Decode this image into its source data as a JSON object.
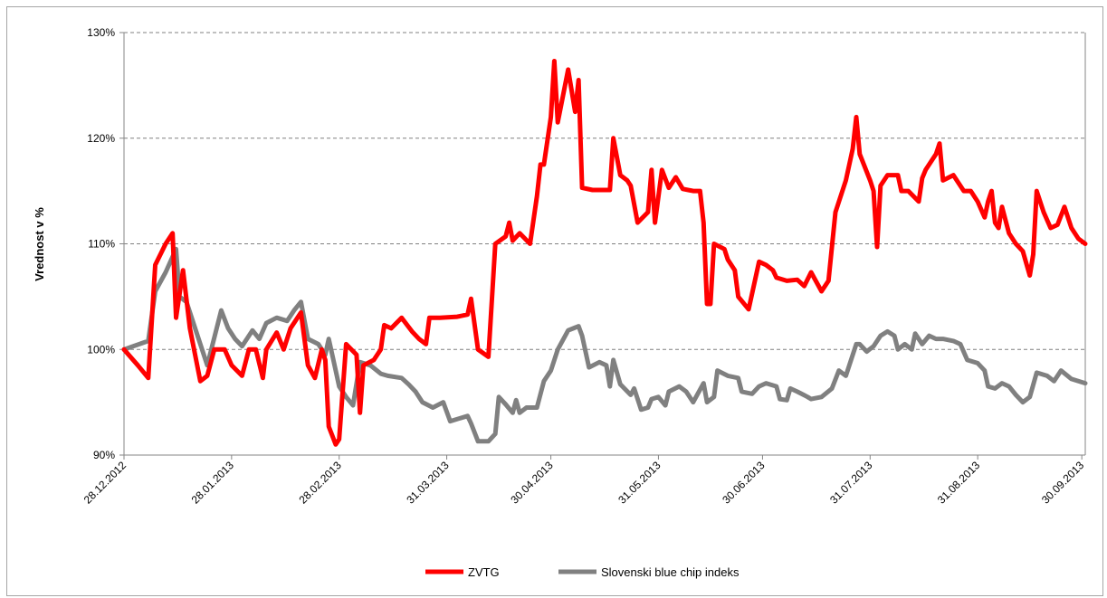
{
  "chart_data": {
    "type": "line",
    "title": "",
    "xlabel": "",
    "ylabel": "Vrednost v %",
    "ylim": [
      90,
      130
    ],
    "yticks": [
      "90%",
      "100%",
      "110%",
      "120%",
      "130%"
    ],
    "ytick_values": [
      90,
      100,
      110,
      120,
      130
    ],
    "xlim": [
      "2012-12-28",
      "2013-10-01"
    ],
    "xtick_labels": [
      "28.12.2012",
      "28.01.2013",
      "28.02.2013",
      "31.03.2013",
      "30.04.2013",
      "31.05.2013",
      "30.06.2013",
      "31.07.2013",
      "31.08.2013",
      "30.09.2013"
    ],
    "xtick_dates": [
      "2012-12-28",
      "2013-01-28",
      "2013-02-28",
      "2013-03-31",
      "2013-04-30",
      "2013-05-31",
      "2013-06-30",
      "2013-07-31",
      "2013-08-31",
      "2013-09-30"
    ],
    "grid": "horizontal-dashed",
    "legend_position": "bottom-center",
    "series": [
      {
        "name": "ZVTG",
        "color": "#ff0000",
        "points": [
          [
            "2012-12-28",
            100.0
          ],
          [
            "2013-01-01",
            98.5
          ],
          [
            "2013-01-04",
            97.3
          ],
          [
            "2013-01-06",
            108.0
          ],
          [
            "2013-01-09",
            110.0
          ],
          [
            "2013-01-11",
            111.0
          ],
          [
            "2013-01-12",
            103.0
          ],
          [
            "2013-01-14",
            107.5
          ],
          [
            "2013-01-16",
            102.0
          ],
          [
            "2013-01-19",
            97.0
          ],
          [
            "2013-01-21",
            97.5
          ],
          [
            "2013-01-23",
            100.0
          ],
          [
            "2013-01-26",
            100.0
          ],
          [
            "2013-01-28",
            98.5
          ],
          [
            "2013-01-31",
            97.5
          ],
          [
            "2013-02-02",
            100.0
          ],
          [
            "2013-02-04",
            100.0
          ],
          [
            "2013-02-06",
            97.3
          ],
          [
            "2013-02-07",
            100.0
          ],
          [
            "2013-02-10",
            101.6
          ],
          [
            "2013-02-12",
            100.0
          ],
          [
            "2013-02-14",
            102.0
          ],
          [
            "2013-02-17",
            103.5
          ],
          [
            "2013-02-19",
            98.5
          ],
          [
            "2013-02-21",
            97.3
          ],
          [
            "2013-02-23",
            100.0
          ],
          [
            "2013-02-24",
            99.0
          ],
          [
            "2013-02-25",
            92.7
          ],
          [
            "2013-02-27",
            91.0
          ],
          [
            "2013-02-28",
            91.5
          ],
          [
            "2013-03-02",
            100.5
          ],
          [
            "2013-03-05",
            99.5
          ],
          [
            "2013-03-06",
            94.0
          ],
          [
            "2013-03-07",
            98.5
          ],
          [
            "2013-03-10",
            99.0
          ],
          [
            "2013-03-12",
            100.0
          ],
          [
            "2013-03-13",
            102.3
          ],
          [
            "2013-03-15",
            102.0
          ],
          [
            "2013-03-18",
            103.0
          ],
          [
            "2013-03-21",
            101.7
          ],
          [
            "2013-03-23",
            101.0
          ],
          [
            "2013-03-25",
            100.5
          ],
          [
            "2013-03-26",
            103.0
          ],
          [
            "2013-03-29",
            103.0
          ],
          [
            "2013-04-03",
            103.1
          ],
          [
            "2013-04-06",
            103.3
          ],
          [
            "2013-04-07",
            104.8
          ],
          [
            "2013-04-09",
            100.0
          ],
          [
            "2013-04-12",
            99.3
          ],
          [
            "2013-04-14",
            110.0
          ],
          [
            "2013-04-17",
            110.7
          ],
          [
            "2013-04-18",
            112.0
          ],
          [
            "2013-04-19",
            110.3
          ],
          [
            "2013-04-21",
            111.0
          ],
          [
            "2013-04-24",
            110.0
          ],
          [
            "2013-04-26",
            114.5
          ],
          [
            "2013-04-27",
            117.5
          ],
          [
            "2013-04-28",
            117.5
          ],
          [
            "2013-04-30",
            122.0
          ],
          [
            "2013-05-01",
            127.3
          ],
          [
            "2013-05-02",
            121.5
          ],
          [
            "2013-05-05",
            126.5
          ],
          [
            "2013-05-07",
            122.5
          ],
          [
            "2013-05-08",
            125.5
          ],
          [
            "2013-05-09",
            115.3
          ],
          [
            "2013-05-12",
            115.1
          ],
          [
            "2013-05-15",
            115.1
          ],
          [
            "2013-05-17",
            115.1
          ],
          [
            "2013-05-18",
            120.0
          ],
          [
            "2013-05-20",
            116.5
          ],
          [
            "2013-05-22",
            116.0
          ],
          [
            "2013-05-23",
            115.5
          ],
          [
            "2013-05-25",
            112.0
          ],
          [
            "2013-05-28",
            113.0
          ],
          [
            "2013-05-29",
            117.0
          ],
          [
            "2013-05-30",
            112.0
          ],
          [
            "2013-06-01",
            117.0
          ],
          [
            "2013-06-03",
            115.3
          ],
          [
            "2013-06-05",
            116.3
          ],
          [
            "2013-06-07",
            115.2
          ],
          [
            "2013-06-10",
            115.0
          ],
          [
            "2013-06-12",
            115.0
          ],
          [
            "2013-06-13",
            112.0
          ],
          [
            "2013-06-14",
            104.3
          ],
          [
            "2013-06-15",
            104.3
          ],
          [
            "2013-06-16",
            110.0
          ],
          [
            "2013-06-19",
            109.5
          ],
          [
            "2013-06-20",
            108.5
          ],
          [
            "2013-06-22",
            107.5
          ],
          [
            "2013-06-23",
            105.0
          ],
          [
            "2013-06-26",
            103.8
          ],
          [
            "2013-06-29",
            108.3
          ],
          [
            "2013-07-01",
            108.0
          ],
          [
            "2013-07-03",
            107.5
          ],
          [
            "2013-07-04",
            106.8
          ],
          [
            "2013-07-07",
            106.5
          ],
          [
            "2013-07-10",
            106.6
          ],
          [
            "2013-07-12",
            106.0
          ],
          [
            "2013-07-14",
            107.3
          ],
          [
            "2013-07-17",
            105.5
          ],
          [
            "2013-07-19",
            106.5
          ],
          [
            "2013-07-21",
            113.0
          ],
          [
            "2013-07-24",
            116.0
          ],
          [
            "2013-07-26",
            119.0
          ],
          [
            "2013-07-27",
            122.0
          ],
          [
            "2013-07-28",
            118.5
          ],
          [
            "2013-07-31",
            116.0
          ],
          [
            "2013-08-01",
            115.0
          ],
          [
            "2013-08-02",
            109.7
          ],
          [
            "2013-08-03",
            115.5
          ],
          [
            "2013-08-05",
            116.5
          ],
          [
            "2013-08-08",
            116.5
          ],
          [
            "2013-08-09",
            115.0
          ],
          [
            "2013-08-11",
            115.0
          ],
          [
            "2013-08-14",
            114.0
          ],
          [
            "2013-08-15",
            116.2
          ],
          [
            "2013-08-16",
            117.0
          ],
          [
            "2013-08-19",
            118.5
          ],
          [
            "2013-08-20",
            119.5
          ],
          [
            "2013-08-21",
            116.0
          ],
          [
            "2013-08-24",
            116.5
          ],
          [
            "2013-08-27",
            115.0
          ],
          [
            "2013-08-29",
            115.0
          ],
          [
            "2013-08-31",
            114.0
          ],
          [
            "2013-09-02",
            112.5
          ],
          [
            "2013-09-03",
            114.0
          ],
          [
            "2013-09-04",
            115.0
          ],
          [
            "2013-09-05",
            112.0
          ],
          [
            "2013-09-06",
            111.5
          ],
          [
            "2013-09-07",
            113.5
          ],
          [
            "2013-09-09",
            111.0
          ],
          [
            "2013-09-11",
            110.0
          ],
          [
            "2013-09-13",
            109.3
          ],
          [
            "2013-09-15",
            107.0
          ],
          [
            "2013-09-16",
            109.0
          ],
          [
            "2013-09-17",
            115.0
          ],
          [
            "2013-09-19",
            113.0
          ],
          [
            "2013-09-21",
            111.5
          ],
          [
            "2013-09-23",
            111.8
          ],
          [
            "2013-09-25",
            113.5
          ],
          [
            "2013-09-27",
            111.5
          ],
          [
            "2013-09-29",
            110.5
          ],
          [
            "2013-10-01",
            110.0
          ]
        ]
      },
      {
        "name": "Slovenski blue chip indeks",
        "color": "#808080",
        "points": [
          [
            "2012-12-28",
            100.0
          ],
          [
            "2013-01-04",
            100.8
          ],
          [
            "2013-01-06",
            105.5
          ],
          [
            "2013-01-09",
            107.3
          ],
          [
            "2013-01-12",
            109.5
          ],
          [
            "2013-01-13",
            105.0
          ],
          [
            "2013-01-15",
            104.5
          ],
          [
            "2013-01-21",
            98.5
          ],
          [
            "2013-01-25",
            103.7
          ],
          [
            "2013-01-27",
            102.0
          ],
          [
            "2013-01-29",
            101.0
          ],
          [
            "2013-01-31",
            100.3
          ],
          [
            "2013-02-03",
            101.8
          ],
          [
            "2013-02-05",
            101.0
          ],
          [
            "2013-02-07",
            102.5
          ],
          [
            "2013-02-10",
            103.0
          ],
          [
            "2013-02-13",
            102.7
          ],
          [
            "2013-02-15",
            103.7
          ],
          [
            "2013-02-17",
            104.5
          ],
          [
            "2013-02-19",
            101.0
          ],
          [
            "2013-02-22",
            100.5
          ],
          [
            "2013-02-24",
            99.5
          ],
          [
            "2013-02-25",
            101.0
          ],
          [
            "2013-02-27",
            98.0
          ],
          [
            "2013-02-28",
            96.5
          ],
          [
            "2013-03-02",
            95.5
          ],
          [
            "2013-03-04",
            94.7
          ],
          [
            "2013-03-06",
            98.8
          ],
          [
            "2013-03-09",
            98.5
          ],
          [
            "2013-03-12",
            97.7
          ],
          [
            "2013-03-14",
            97.5
          ],
          [
            "2013-03-18",
            97.3
          ],
          [
            "2013-03-20",
            96.7
          ],
          [
            "2013-03-22",
            96.0
          ],
          [
            "2013-03-24",
            95.0
          ],
          [
            "2013-03-27",
            94.5
          ],
          [
            "2013-03-30",
            95.0
          ],
          [
            "2013-04-01",
            93.2
          ],
          [
            "2013-04-04",
            93.5
          ],
          [
            "2013-04-06",
            93.7
          ],
          [
            "2013-04-07",
            93.0
          ],
          [
            "2013-04-09",
            91.3
          ],
          [
            "2013-04-12",
            91.3
          ],
          [
            "2013-04-14",
            92.0
          ],
          [
            "2013-04-15",
            95.5
          ],
          [
            "2013-04-17",
            94.8
          ],
          [
            "2013-04-19",
            94.0
          ],
          [
            "2013-04-20",
            95.2
          ],
          [
            "2013-04-21",
            94.0
          ],
          [
            "2013-04-23",
            94.5
          ],
          [
            "2013-04-26",
            94.5
          ],
          [
            "2013-04-28",
            97.0
          ],
          [
            "2013-04-30",
            98.0
          ],
          [
            "2013-05-02",
            100.0
          ],
          [
            "2013-05-05",
            101.8
          ],
          [
            "2013-05-08",
            102.2
          ],
          [
            "2013-05-09",
            101.3
          ],
          [
            "2013-05-11",
            98.3
          ],
          [
            "2013-05-14",
            98.8
          ],
          [
            "2013-05-16",
            98.5
          ],
          [
            "2013-05-17",
            96.5
          ],
          [
            "2013-05-18",
            99.0
          ],
          [
            "2013-05-20",
            96.7
          ],
          [
            "2013-05-23",
            95.7
          ],
          [
            "2013-05-24",
            96.3
          ],
          [
            "2013-05-26",
            94.3
          ],
          [
            "2013-05-28",
            94.5
          ],
          [
            "2013-05-29",
            95.3
          ],
          [
            "2013-05-31",
            95.5
          ],
          [
            "2013-06-02",
            94.7
          ],
          [
            "2013-06-03",
            96.0
          ],
          [
            "2013-06-06",
            96.5
          ],
          [
            "2013-06-08",
            96.0
          ],
          [
            "2013-06-10",
            95.0
          ],
          [
            "2013-06-13",
            96.8
          ],
          [
            "2013-06-14",
            95.0
          ],
          [
            "2013-06-16",
            95.5
          ],
          [
            "2013-06-17",
            98.0
          ],
          [
            "2013-06-20",
            97.5
          ],
          [
            "2013-06-23",
            97.3
          ],
          [
            "2013-06-24",
            96.0
          ],
          [
            "2013-06-27",
            95.8
          ],
          [
            "2013-06-29",
            96.5
          ],
          [
            "2013-07-01",
            96.8
          ],
          [
            "2013-07-04",
            96.5
          ],
          [
            "2013-07-05",
            95.3
          ],
          [
            "2013-07-07",
            95.2
          ],
          [
            "2013-07-08",
            96.3
          ],
          [
            "2013-07-10",
            96.0
          ],
          [
            "2013-07-13",
            95.5
          ],
          [
            "2013-07-14",
            95.3
          ],
          [
            "2013-07-17",
            95.5
          ],
          [
            "2013-07-20",
            96.3
          ],
          [
            "2013-07-22",
            98.0
          ],
          [
            "2013-07-24",
            97.5
          ],
          [
            "2013-07-27",
            100.5
          ],
          [
            "2013-07-28",
            100.5
          ],
          [
            "2013-07-30",
            99.8
          ],
          [
            "2013-08-01",
            100.3
          ],
          [
            "2013-08-03",
            101.3
          ],
          [
            "2013-08-05",
            101.7
          ],
          [
            "2013-08-07",
            101.3
          ],
          [
            "2013-08-08",
            100.0
          ],
          [
            "2013-08-10",
            100.5
          ],
          [
            "2013-08-12",
            100.0
          ],
          [
            "2013-08-13",
            101.5
          ],
          [
            "2013-08-15",
            100.5
          ],
          [
            "2013-08-17",
            101.3
          ],
          [
            "2013-08-19",
            101.0
          ],
          [
            "2013-08-21",
            101.0
          ],
          [
            "2013-08-24",
            100.8
          ],
          [
            "2013-08-26",
            100.5
          ],
          [
            "2013-08-28",
            99.0
          ],
          [
            "2013-08-31",
            98.7
          ],
          [
            "2013-09-02",
            98.0
          ],
          [
            "2013-09-03",
            96.5
          ],
          [
            "2013-09-05",
            96.3
          ],
          [
            "2013-09-07",
            96.8
          ],
          [
            "2013-09-09",
            96.5
          ],
          [
            "2013-09-11",
            95.7
          ],
          [
            "2013-09-13",
            95.0
          ],
          [
            "2013-09-15",
            95.5
          ],
          [
            "2013-09-17",
            97.8
          ],
          [
            "2013-09-20",
            97.5
          ],
          [
            "2013-09-22",
            97.0
          ],
          [
            "2013-09-24",
            98.0
          ],
          [
            "2013-09-27",
            97.2
          ],
          [
            "2013-10-01",
            96.8
          ]
        ]
      }
    ]
  }
}
